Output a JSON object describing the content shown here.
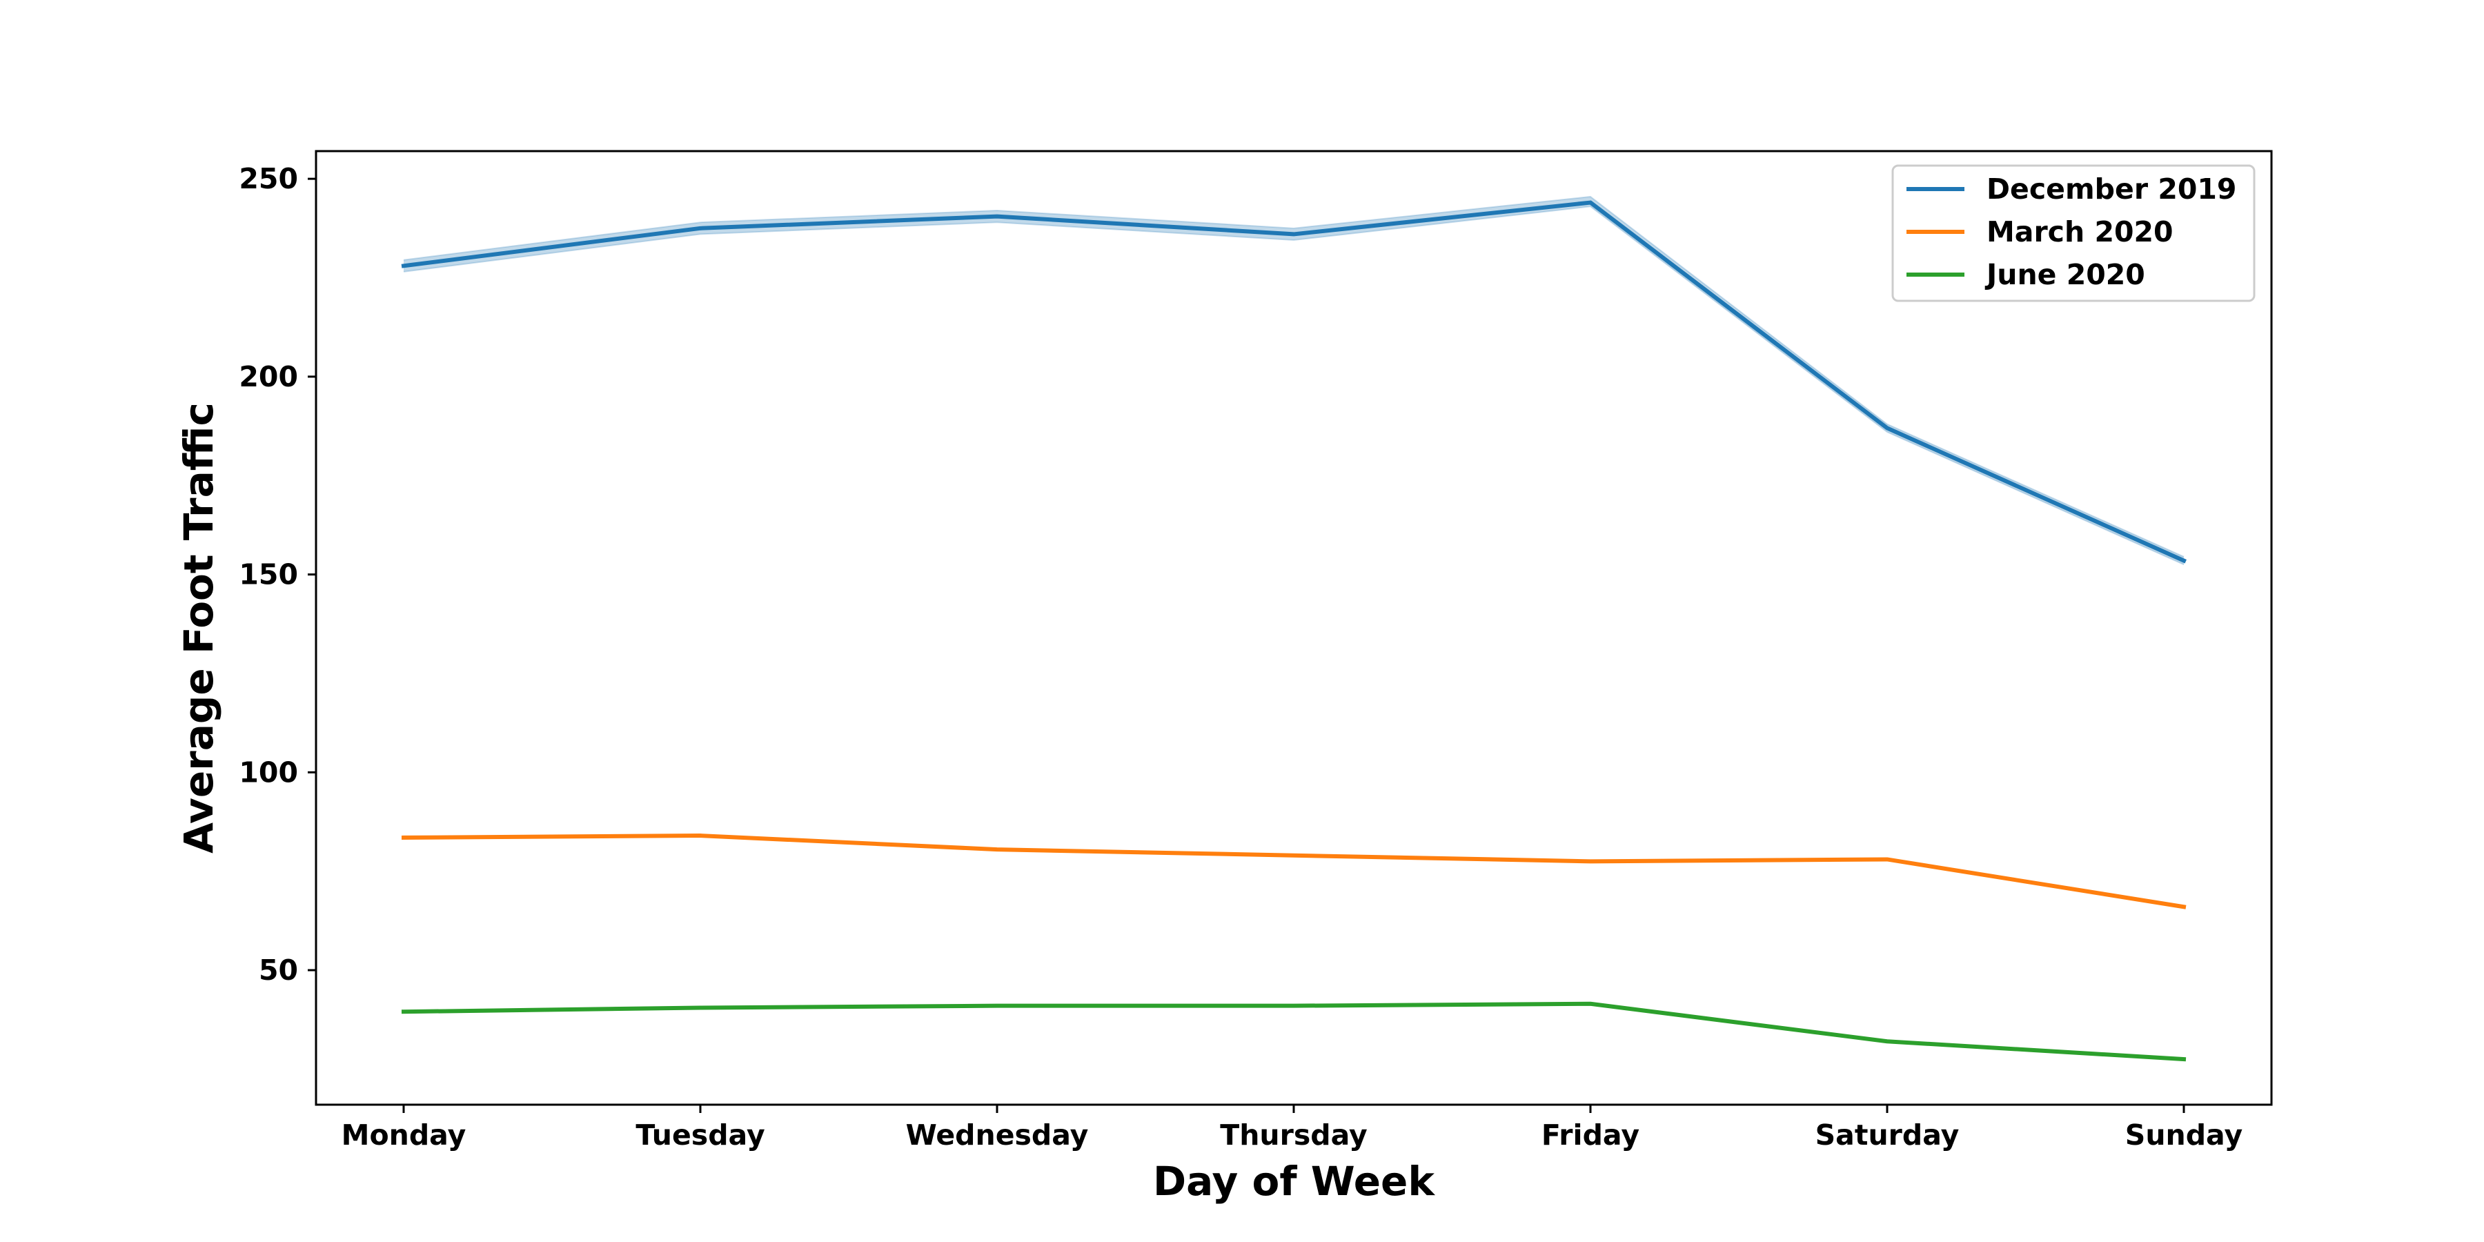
{
  "chart_data": {
    "type": "line",
    "title": "",
    "xlabel": "Day of Week",
    "ylabel": "Average Foot Traffic",
    "categories": [
      "Monday",
      "Tuesday",
      "Wednesday",
      "Thursday",
      "Friday",
      "Saturday",
      "Sunday"
    ],
    "ylim": [
      16,
      257
    ],
    "yticks": [
      50,
      100,
      150,
      200,
      250
    ],
    "grid": false,
    "legend_position": "top-right",
    "series": [
      {
        "name": "December 2019",
        "color": "#1f77b4",
        "values": [
          228,
          237.5,
          240.5,
          236,
          244,
          187,
          153.5
        ],
        "ci_lower": [
          226.5,
          236,
          239,
          234.5,
          243,
          186,
          152.5
        ],
        "ci_upper": [
          229.5,
          239,
          242,
          237.5,
          245.5,
          188,
          154.5
        ]
      },
      {
        "name": "March 2020",
        "color": "#ff7f0e",
        "values": [
          83.5,
          84,
          80.5,
          79,
          77.5,
          78,
          66
        ]
      },
      {
        "name": "June 2020",
        "color": "#2ca02c",
        "values": [
          39.5,
          40.5,
          41,
          41,
          41.5,
          32,
          27.5
        ]
      }
    ]
  }
}
